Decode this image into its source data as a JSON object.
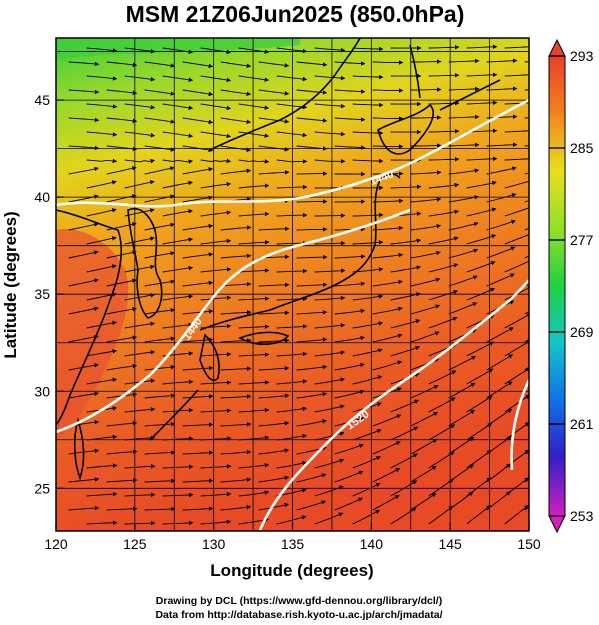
{
  "title": "MSM 21Z06Jun2025 (850.0hPa)",
  "xlabel": "Longitude (degrees)",
  "ylabel": "Latitude  (degrees)",
  "x_ticks": [
    "120",
    "125",
    "130",
    "135",
    "140",
    "145",
    "150"
  ],
  "y_ticks": [
    "25",
    "30",
    "35",
    "40",
    "45"
  ],
  "colorbar": {
    "ticks": [
      "293",
      "285",
      "277",
      "269",
      "261",
      "253"
    ],
    "range": [
      253,
      293
    ]
  },
  "contour_labels": [
    "1440",
    "1440",
    "1520"
  ],
  "credits": {
    "line1": "Drawing by DCL (https://www.gfd-dennou.org/library/dcl/)",
    "line2": "Data from http://database.rish.kyoto-u.ac.jp/arch/jmadata/"
  },
  "colors": {
    "warm": "#e8442a",
    "orange": "#f08a1e",
    "yellow": "#d8d420",
    "green": "#48d23a",
    "contour": "#ffffff",
    "land": "#000000"
  }
}
